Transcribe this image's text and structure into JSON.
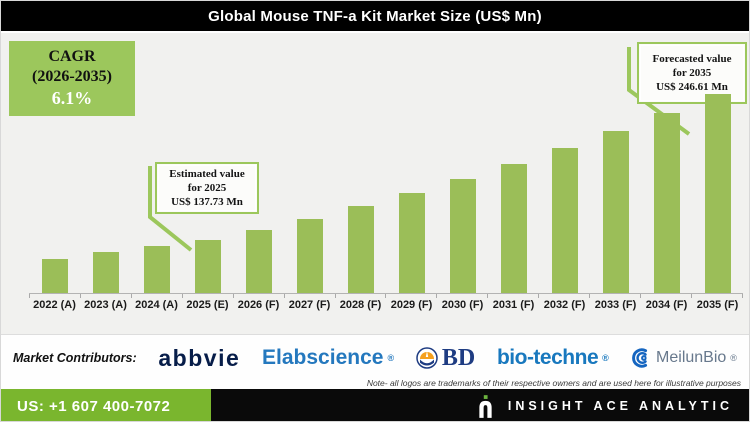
{
  "title": "Global Mouse TNF-a Kit Market Size (US$ Mn)",
  "cagr_box": {
    "line1": "CAGR",
    "line2": "(2026-2035)",
    "value": "6.1%"
  },
  "callouts": {
    "estimated": {
      "line1": "Estimated value",
      "line2": "for 2025",
      "line3": "US$ 137.73 Mn"
    },
    "forecasted": {
      "line1": "Forecasted value",
      "line2": "for 2035",
      "line3": "US$ 246.61 Mn"
    }
  },
  "chart_data": {
    "type": "bar",
    "title": "Global Mouse TNF-a Kit Market Size (US$ Mn)",
    "ylabel": "US$ Mn",
    "grid": false,
    "categories": [
      "2022 (A)",
      "2023 (A)",
      "2024 (A)",
      "2025 (E)",
      "2026 (F)",
      "2027 (F)",
      "2028 (F)",
      "2029 (F)",
      "2030 (F)",
      "2031 (F)",
      "2032 (F)",
      "2033 (F)",
      "2034 (F)",
      "2035 (F)"
    ],
    "values": [
      123.3,
      128.7,
      132.7,
      137.73,
      144.7,
      153.6,
      162.9,
      172.9,
      183.4,
      194.6,
      206.5,
      219.1,
      232.4,
      246.61
    ],
    "labeled_points": {
      "2025 (E)": 137.73,
      "2035 (F)": 246.61
    },
    "cagr_2026_2035_percent": 6.1,
    "bar_color": "#9bbe58",
    "value_note": "Only 2025 and 2035 values are labeled on the chart; other values estimated from bar heights"
  },
  "footer": {
    "contributors_label": "Market Contributors:",
    "logos": [
      {
        "name": "abbvie",
        "text": "abbvie"
      },
      {
        "name": "elabscience",
        "text": "Elabscience",
        "reg": "®"
      },
      {
        "name": "bd",
        "text": "BD"
      },
      {
        "name": "bio-techne",
        "text": "bio-techne",
        "reg": "®"
      },
      {
        "name": "meilunbio",
        "text": "MeilunBio",
        "reg": "®"
      }
    ],
    "note": "Note- all logos are trademarks of their respective owners and are used here for illustrative purposes"
  },
  "bottom_bar": {
    "phone": "US: +1 607 400-7072",
    "brand": "INSIGHT ACE ANALYTIC"
  },
  "colors": {
    "bar_green": "#9bbe58",
    "cagr_green": "#9cc75c",
    "bottom_green": "#7ab62e",
    "title_bg": "#000000",
    "chart_bg": "#f1f1ef"
  }
}
